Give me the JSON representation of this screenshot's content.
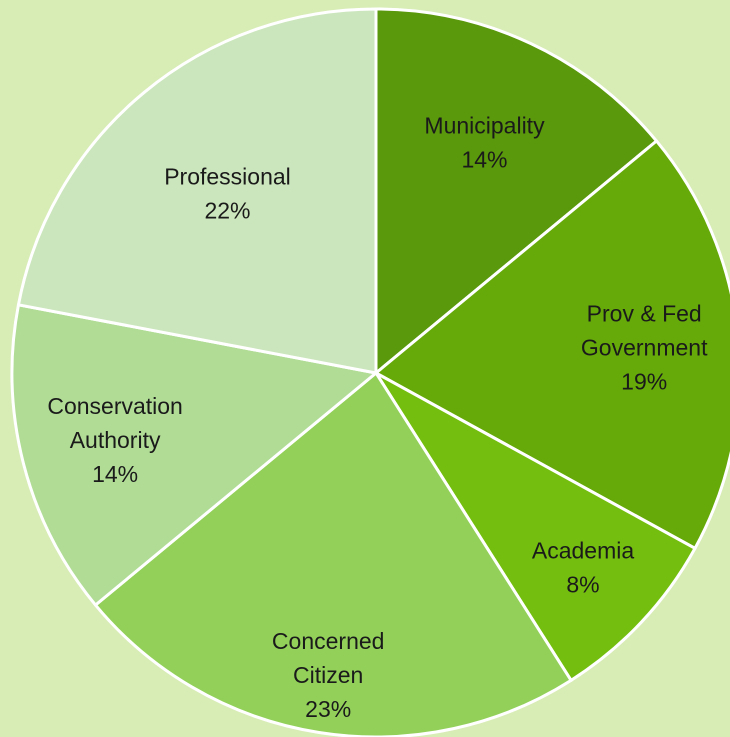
{
  "chart_data": {
    "type": "pie",
    "slices": [
      {
        "label": [
          "Municipality"
        ],
        "percent_label": "14%",
        "value": 14,
        "color": "#5a980c"
      },
      {
        "label": [
          "Prov & Fed",
          "Government"
        ],
        "percent_label": "19%",
        "value": 19,
        "color": "#66aa0a"
      },
      {
        "label": [
          "Academia"
        ],
        "percent_label": "8%",
        "value": 8,
        "color": "#74be10"
      },
      {
        "label": [
          "Concerned",
          "Citizen"
        ],
        "percent_label": "23%",
        "value": 23,
        "color": "#92d05a"
      },
      {
        "label": [
          "Conservation",
          "Authority"
        ],
        "percent_label": "14%",
        "value": 14,
        "color": "#b0dc96"
      },
      {
        "label": [
          "Professional"
        ],
        "percent_label": "22%",
        "value": 22,
        "color": "#cbe6bc"
      }
    ],
    "start_angle_deg": 0,
    "direction": "clockwise",
    "background_color": "#d8ecb6",
    "legend": "none"
  }
}
